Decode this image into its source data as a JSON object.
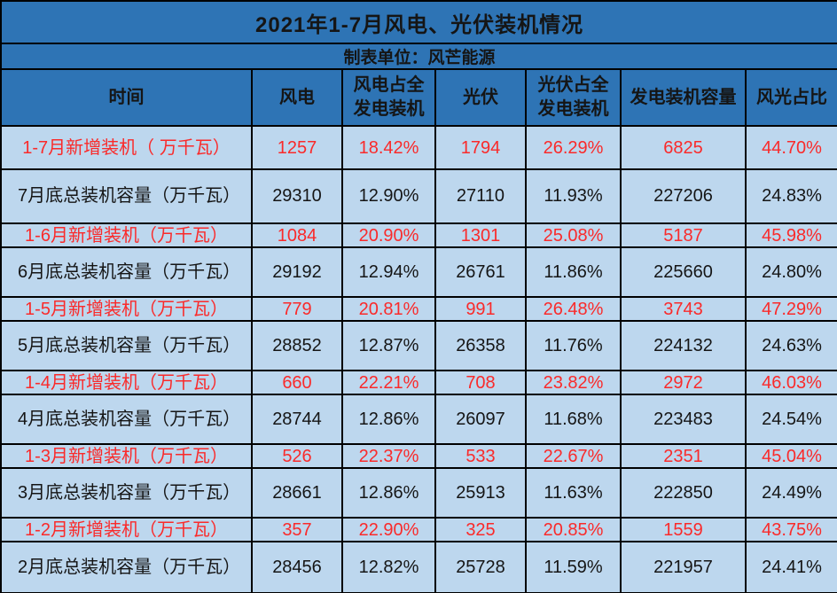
{
  "colors": {
    "header_bg": "#2E74B5",
    "body_bg": "#BDD7EE",
    "border": "#000000",
    "text": "#151515",
    "highlight_text": "#FA2A2A"
  },
  "chart_data": {
    "type": "table",
    "title": "2021年1-7月风电、光伏装机情况",
    "subtitle": "制表单位：风芒能源",
    "columns": [
      "时间",
      "风电",
      "风电占全发电装机",
      "光伏",
      "光伏占全发电装机",
      "发电装机容量",
      "风光占比"
    ],
    "rows": [
      {
        "highlight": true,
        "cells": [
          "1-7月新增装机（ 万千瓦）",
          "1257",
          "18.42%",
          "1794",
          "26.29%",
          "6825",
          "44.70%"
        ]
      },
      {
        "highlight": false,
        "cells": [
          "7月底总装机容量（万千瓦）",
          "29310",
          "12.90%",
          "27110",
          "11.93%",
          "227206",
          "24.83%"
        ]
      },
      {
        "highlight": true,
        "cells": [
          "1-6月新增装机（万千瓦）",
          "1084",
          "20.90%",
          "1301",
          "25.08%",
          "5187",
          "45.98%"
        ]
      },
      {
        "highlight": false,
        "cells": [
          "6月底总装机容量（万千瓦）",
          "29192",
          "12.94%",
          "26761",
          "11.86%",
          "225660",
          "24.80%"
        ]
      },
      {
        "highlight": true,
        "cells": [
          "1-5月新增装机（万千瓦）",
          "779",
          "20.81%",
          "991",
          "26.48%",
          "3743",
          "47.29%"
        ]
      },
      {
        "highlight": false,
        "cells": [
          "5月底总装机容量（万千瓦）",
          "28852",
          "12.87%",
          "26358",
          "11.76%",
          "224132",
          "24.63%"
        ]
      },
      {
        "highlight": true,
        "cells": [
          "1-4月新增装机（万千瓦）",
          "660",
          "22.21%",
          "708",
          "23.82%",
          "2972",
          "46.03%"
        ]
      },
      {
        "highlight": false,
        "cells": [
          "4月底总装机容量（万千瓦）",
          "28744",
          "12.86%",
          "26097",
          "11.68%",
          "223483",
          "24.54%"
        ]
      },
      {
        "highlight": true,
        "cells": [
          "1-3月新增装机（万千瓦）",
          "526",
          "22.37%",
          "533",
          "22.67%",
          "2351",
          "45.04%"
        ]
      },
      {
        "highlight": false,
        "cells": [
          "3月底总装机容量（万千瓦）",
          "28661",
          "12.86%",
          "25913",
          "11.63%",
          "222850",
          "24.49%"
        ]
      },
      {
        "highlight": true,
        "cells": [
          "1-2月新增装机（万千瓦）",
          "357",
          "22.90%",
          "325",
          "20.85%",
          "1559",
          "43.75%"
        ]
      },
      {
        "highlight": false,
        "cells": [
          "2月底总装机容量（万千瓦）",
          "28456",
          "12.82%",
          "25728",
          "11.59%",
          "221957",
          "24.41%"
        ]
      }
    ]
  }
}
